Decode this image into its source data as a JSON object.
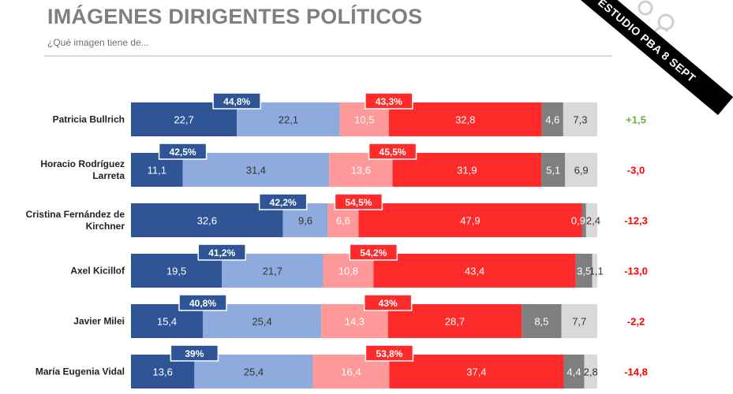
{
  "header": {
    "title": "IMÁGENES DIRIGENTES POLÍTICOS",
    "subtitle": "¿Qué imagen tiene de...",
    "ribbon": "ESTUDIO PBA 8 SEPT"
  },
  "colors": {
    "muy_positiva": "#2f5597",
    "positiva": "#8faadc",
    "negativa": "#ff9999",
    "muy_negativa": "#ff2a2a",
    "ns_nc": "#7f7f7f",
    "no_conoce": "#d9d9d9",
    "net_positive": "#70ad47",
    "net_negative": "#ff0000"
  },
  "chart_data": {
    "type": "bar",
    "orientation": "horizontal",
    "stacked": true,
    "categories": [
      "Patricia Bullrich",
      "Horacio Rodríguez Larreta",
      "Cristina Fernández de Kirchner",
      "Axel Kicillof",
      "Javier Milei",
      "María Eugenia Vidal"
    ],
    "category_lines": [
      [
        "Patricia Bullrich"
      ],
      [
        "Horacio Rodríguez",
        "Larreta"
      ],
      [
        "Cristina Fernández de",
        "Kirchner"
      ],
      [
        "Axel Kicillof"
      ],
      [
        "Javier Milei"
      ],
      [
        "María Eugenia Vidal"
      ]
    ],
    "series": [
      {
        "values": [
          22.7,
          11.1,
          32.6,
          19.5,
          15.4,
          13.6
        ]
      },
      {
        "values": [
          22.1,
          31.4,
          9.6,
          21.7,
          25.4,
          25.4
        ]
      },
      {
        "values": [
          10.5,
          13.6,
          6.6,
          10.8,
          14.3,
          16.4
        ]
      },
      {
        "values": [
          32.8,
          31.9,
          47.9,
          43.4,
          28.7,
          37.4
        ]
      },
      {
        "values": [
          4.6,
          5.1,
          0.9,
          3.5,
          8.5,
          4.4
        ]
      },
      {
        "values": [
          7.3,
          6.9,
          2.4,
          1.1,
          7.7,
          2.8
        ]
      }
    ],
    "segment_labels": [
      [
        "22,7",
        "22,1",
        "10,5",
        "32,8",
        "4,6",
        "7,3"
      ],
      [
        "11,1",
        "31,4",
        "13,6",
        "31,9",
        "5,1",
        "6,9"
      ],
      [
        "32,6",
        "9,6",
        "6,6",
        "47,9",
        "0,9",
        "2,4"
      ],
      [
        "19,5",
        "21,7",
        "10,8",
        "43,4",
        "3,5",
        "1,1"
      ],
      [
        "15,4",
        "25,4",
        "14,3",
        "28,7",
        "8,5",
        "7,7"
      ],
      [
        "13,6",
        "25,4",
        "16,4",
        "37,4",
        "4,4",
        "2,8"
      ]
    ],
    "positive_totals": [
      "44,8%",
      "42,5%",
      "42,2%",
      "41,2%",
      "40,8%",
      "39%"
    ],
    "negative_totals": [
      "43,3%",
      "45,5%",
      "54,5%",
      "54,2%",
      "43%",
      "53,8%"
    ],
    "net": [
      "+1,5",
      "-3,0",
      "-12,3",
      "-13,0",
      "-2,2",
      "-14,8"
    ],
    "net_values": [
      1.5,
      -3.0,
      -12.3,
      -13.0,
      -2.2,
      -14.8
    ],
    "xlim": [
      0,
      100
    ],
    "grid": false
  }
}
